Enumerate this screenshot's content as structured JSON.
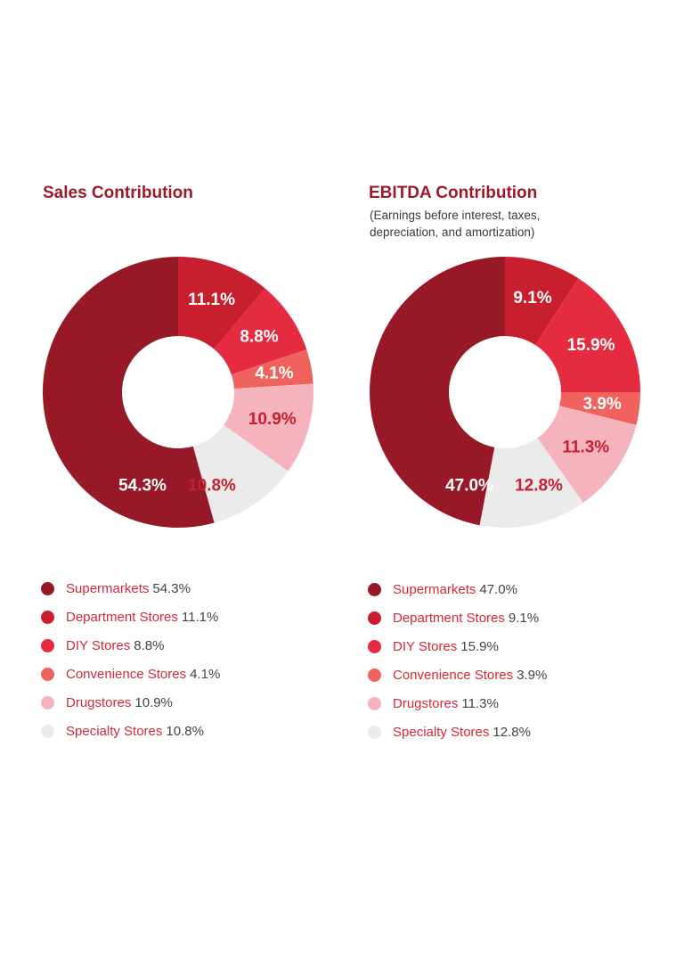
{
  "chart_data": [
    {
      "type": "pie",
      "title": "Sales Contribution",
      "subtitle": "",
      "categories": [
        "Supermarkets",
        "Department Stores",
        "DIY Stores",
        "Convenience Stores",
        "Drugstores",
        "Specialty Stores"
      ],
      "values": [
        54.3,
        11.1,
        8.8,
        4.1,
        10.9,
        10.8
      ],
      "labels": [
        "54.3%",
        "11.1%",
        "8.8%",
        "4.1%",
        "10.9%",
        "10.8%"
      ],
      "colors": [
        "#971928",
        "#c81f2f",
        "#e52b3f",
        "#f0625e",
        "#f5b3be",
        "#ebebeb"
      ],
      "label_colors": [
        "#ffffff",
        "#ffffff",
        "#ffffff",
        "#ffffff",
        "#c81f2f",
        "#c81f2f"
      ],
      "legend": [
        "54.3%",
        "11.1%",
        "8.8%",
        "4.1%",
        "10.9%",
        "10.8%"
      ],
      "legend_placement": "bottom"
    },
    {
      "type": "pie",
      "title": "EBITDA Contribution",
      "subtitle": "(Earnings before interest, taxes, depreciation, and amortization)",
      "categories": [
        "Supermarkets",
        "Department Stores",
        "DIY Stores",
        "Convenience Stores",
        "Drugstores",
        "Specialty Stores"
      ],
      "values": [
        47.0,
        9.1,
        15.9,
        3.9,
        11.3,
        12.8
      ],
      "labels": [
        "47.0%",
        "9.1%",
        "15.9%",
        "3.9%",
        "11.3%",
        "12.8%"
      ],
      "colors": [
        "#971928",
        "#c81f2f",
        "#e52b3f",
        "#f0625e",
        "#f5b3be",
        "#ebebeb"
      ],
      "label_colors": [
        "#ffffff",
        "#ffffff",
        "#ffffff",
        "#ffffff",
        "#c81f2f",
        "#c81f2f"
      ],
      "legend": [
        "47.0%",
        "9.1%",
        "15.9%",
        "3.9%",
        "11.3%",
        "12.8%"
      ],
      "legend_placement": "bottom"
    }
  ]
}
